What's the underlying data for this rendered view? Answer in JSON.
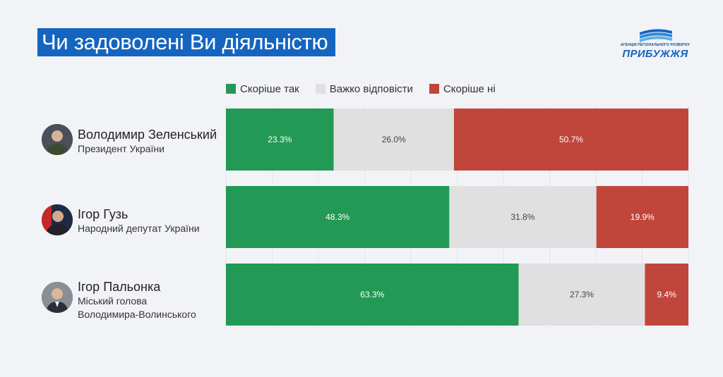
{
  "title": "Чи задоволені Ви діяльністю",
  "logo": {
    "small_text": "АГЕНЦІЯ РЕГІОНАЛЬНОГО РОЗВИТКУ",
    "big_text": "ПРИБУЖЖЯ"
  },
  "colors": {
    "background": "#f2f3f7",
    "title_bg": "#1565c0",
    "positive": "#229954",
    "neutral": "#e0e0e0",
    "negative": "#c0463c"
  },
  "legend": [
    {
      "label": "Скоріше так",
      "color": "#229954"
    },
    {
      "label": "Важко відповісти",
      "color": "#e0e0e0"
    },
    {
      "label": "Скоріше ні",
      "color": "#c0463c"
    }
  ],
  "people": [
    {
      "name": "Володимир Зеленський",
      "role_lines": [
        "Президент України"
      ],
      "avatar_icon": "person-portrait-icon"
    },
    {
      "name": "Ігор Гузь",
      "role_lines": [
        "Народний депутат України"
      ],
      "avatar_icon": "person-portrait-icon"
    },
    {
      "name": "Ігор Пальонка",
      "role_lines": [
        "Міський голова",
        "Володимира-Волинського"
      ],
      "avatar_icon": "person-portrait-icon"
    }
  ],
  "chart_data": {
    "type": "bar",
    "orientation": "horizontal",
    "stacked": true,
    "normalized": true,
    "unit": "%",
    "categories": [
      "Володимир Зеленський",
      "Ігор Гузь",
      "Ігор Пальонка"
    ],
    "series": [
      {
        "name": "Скоріше так",
        "color": "#229954",
        "values": [
          23.3,
          48.3,
          63.3
        ]
      },
      {
        "name": "Важко відповісти",
        "color": "#e0e0e0",
        "values": [
          26.0,
          31.8,
          27.3
        ]
      },
      {
        "name": "Скоріше ні",
        "color": "#c0463c",
        "values": [
          50.7,
          19.9,
          9.4
        ]
      }
    ],
    "data_labels": [
      [
        "23.3%",
        "26.0%",
        "50.7%"
      ],
      [
        "48.3%",
        "31.8%",
        "19.9%"
      ],
      [
        "63.3%",
        "27.3%",
        "9.4%"
      ]
    ],
    "xlim": [
      0,
      100
    ],
    "grid": "vertical",
    "legend_position": "top"
  }
}
